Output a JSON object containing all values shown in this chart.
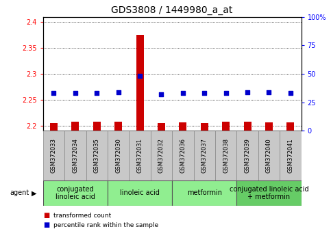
{
  "title": "GDS3808 / 1449980_a_at",
  "samples": [
    "GSM372033",
    "GSM372034",
    "GSM372035",
    "GSM372030",
    "GSM372031",
    "GSM372032",
    "GSM372036",
    "GSM372037",
    "GSM372038",
    "GSM372039",
    "GSM372040",
    "GSM372041"
  ],
  "transformed_count": [
    2.205,
    2.207,
    2.208,
    2.207,
    2.375,
    2.205,
    2.206,
    2.205,
    2.208,
    2.207,
    2.206,
    2.206
  ],
  "percentile_rank": [
    33,
    33,
    33,
    34,
    48,
    32,
    33,
    33,
    33,
    34,
    34,
    33
  ],
  "ylim_left": [
    2.19,
    2.41
  ],
  "ylim_right": [
    0,
    100
  ],
  "yticks_left": [
    2.2,
    2.25,
    2.3,
    2.35,
    2.4
  ],
  "yticks_right": [
    0,
    25,
    50,
    75,
    100
  ],
  "ytick_labels_left": [
    "2.2",
    "2.25",
    "2.3",
    "2.35",
    "2.4"
  ],
  "ytick_labels_right": [
    "0",
    "25",
    "50",
    "75",
    "100%"
  ],
  "groups": [
    {
      "label": "conjugated\nlinoleic acid",
      "start": 0,
      "end": 3,
      "color": "#90EE90"
    },
    {
      "label": "linoleic acid",
      "start": 3,
      "end": 6,
      "color": "#90EE90"
    },
    {
      "label": "metformin",
      "start": 6,
      "end": 9,
      "color": "#90EE90"
    },
    {
      "label": "conjugated linoleic acid\n+ metformin",
      "start": 9,
      "end": 12,
      "color": "#66CC66"
    }
  ],
  "bar_color": "#CC0000",
  "dot_color": "#0000CC",
  "grid_color": "#000000",
  "agent_label": "agent",
  "legend_items": [
    {
      "label": "transformed count",
      "color": "#CC0000"
    },
    {
      "label": "percentile rank within the sample",
      "color": "#0000CC"
    }
  ],
  "title_fontsize": 10,
  "tick_fontsize": 7,
  "sample_fontsize": 6,
  "group_fontsize": 7,
  "bar_width": 0.35,
  "bg_color": "#ffffff",
  "sample_bg_color": "#C8C8C8",
  "plot_bg_color": "#ffffff"
}
